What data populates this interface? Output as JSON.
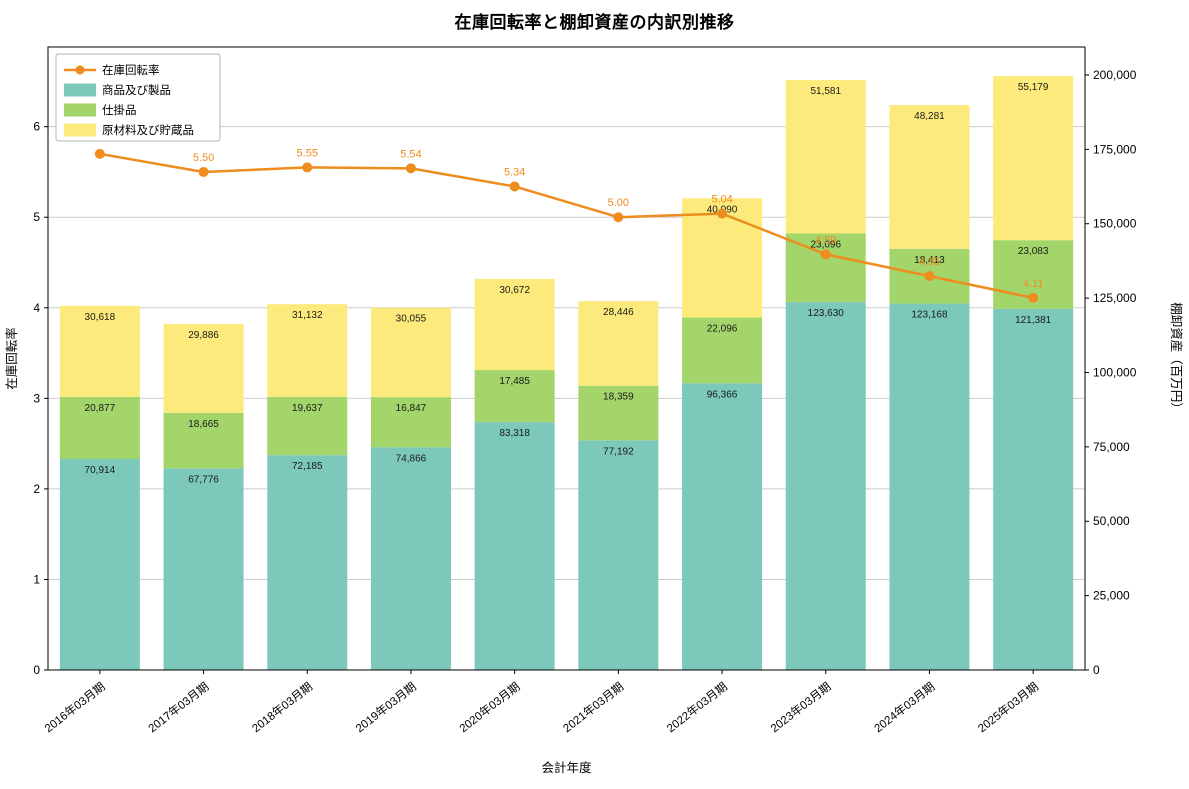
{
  "title": "在庫回転率と棚卸資産の内訳別推移",
  "chart_data": {
    "type": "bar",
    "stacked": true,
    "title": "在庫回転率と棚卸資産の内訳別推移",
    "xlabel": "会計年度",
    "ylabel_left": "在庫回転率",
    "ylabel_right": "棚卸資産（百万円）",
    "categories": [
      "2016年03月期",
      "2017年03月期",
      "2018年03月期",
      "2019年03月期",
      "2020年03月期",
      "2021年03月期",
      "2022年03月期",
      "2023年03月期",
      "2024年03月期",
      "2025年03月期"
    ],
    "series": [
      {
        "name": "商品及び製品",
        "color": "#7cc8bb",
        "values": [
          70914,
          67776,
          72185,
          74866,
          83318,
          77192,
          96366,
          123630,
          123168,
          121381
        ]
      },
      {
        "name": "仕掛品",
        "color": "#a3d56a",
        "values": [
          20877,
          18665,
          19637,
          16847,
          17485,
          18359,
          22096,
          23096,
          18413,
          23083
        ]
      },
      {
        "name": "原材料及び貯蔵品",
        "color": "#fdea7c",
        "values": [
          30618,
          29886,
          31132,
          30055,
          30672,
          28446,
          40090,
          51581,
          48281,
          55179
        ]
      }
    ],
    "line": {
      "name": "在庫回転率",
      "color": "#ef8c1e",
      "values": [
        5.7,
        5.5,
        5.55,
        5.54,
        5.34,
        5.0,
        5.04,
        4.59,
        4.35,
        4.11
      ],
      "labels": [
        null,
        "5.50",
        "5.55",
        "5.54",
        "5.34",
        "5.00",
        "5.04",
        "4.59",
        "4.35",
        "4.11"
      ]
    },
    "yticks_left": [
      0,
      1,
      2,
      3,
      4,
      5,
      6
    ],
    "yticks_right": [
      0,
      25000,
      50000,
      75000,
      100000,
      125000,
      150000,
      175000,
      200000
    ],
    "ylim_left": [
      0,
      6.88
    ],
    "ylim_right": [
      0,
      209400
    ],
    "grid": true,
    "legend_position": "upper left",
    "legend": [
      "在庫回転率",
      "商品及び製品",
      "仕掛品",
      "原材料及び貯蔵品"
    ]
  }
}
